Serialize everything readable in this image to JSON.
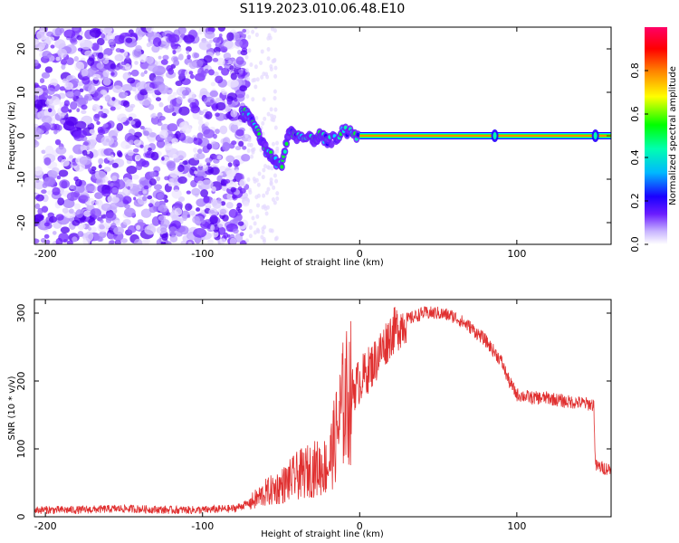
{
  "title": "S119.2023.010.06.48.E10",
  "colors": {
    "snr_line": "#e03030",
    "colormap": [
      "#ffffff",
      "#d8c8ff",
      "#8a3cff",
      "#2200ff",
      "#00e0ff",
      "#00ff30",
      "#ffff00",
      "#ff7a00",
      "#ff0000",
      "#ff0066"
    ]
  },
  "chart_data": [
    {
      "type": "heatmap",
      "title": "S119.2023.010.06.48.E10",
      "xlabel": "Height of straight line (km)",
      "ylabel": "Frequency (Hz)",
      "xlim": [
        -207,
        160
      ],
      "ylim": [
        -25,
        25
      ],
      "xticks": [
        -200,
        -100,
        0,
        100
      ],
      "yticks": [
        20,
        10,
        0,
        -10,
        -20
      ],
      "colorbar": {
        "label": "Normalized spectral amplitude",
        "range": [
          0,
          1
        ],
        "ticks": [
          "0.0",
          "0.2",
          "0.4",
          "0.6",
          "0.8"
        ]
      },
      "features": {
        "noise_region": {
          "x_range": [
            -207,
            -72
          ],
          "freq_range": [
            -25,
            25
          ],
          "amplitude": 0.1
        },
        "signal_track": [
          {
            "x": -75,
            "freq": 6
          },
          {
            "x": -70,
            "freq": 4
          },
          {
            "x": -65,
            "freq": 1
          },
          {
            "x": -60,
            "freq": -3
          },
          {
            "x": -55,
            "freq": -5.5
          },
          {
            "x": -50,
            "freq": -7
          },
          {
            "x": -45,
            "freq": 1
          },
          {
            "x": -40,
            "freq": 0
          },
          {
            "x": -30,
            "freq": -1
          },
          {
            "x": -25,
            "freq": 0
          },
          {
            "x": -20,
            "freq": -1.5
          },
          {
            "x": -10,
            "freq": 1
          },
          {
            "x": 0,
            "freq": 0
          },
          {
            "x": 160,
            "freq": 0
          }
        ],
        "line_x_start": 0
      }
    },
    {
      "type": "line",
      "xlabel": "Height of straight line (km)",
      "ylabel": "SNR (10 * v/v)",
      "xlim": [
        -207,
        160
      ],
      "ylim": [
        0,
        320
      ],
      "xticks": [
        -200,
        -100,
        0,
        100
      ],
      "yticks": [
        0,
        100,
        200,
        300
      ],
      "series": [
        {
          "x": [
            -207,
            -180,
            -150,
            -120,
            -100,
            -80,
            -70,
            -60,
            -50,
            -40,
            -30,
            -20,
            -15,
            -10,
            -5,
            0,
            10,
            20,
            30,
            40,
            50,
            60,
            70,
            80,
            90,
            95,
            100,
            110,
            120,
            130,
            140,
            149,
            150,
            155,
            160
          ],
          "values": [
            10,
            10,
            12,
            10,
            10,
            12,
            20,
            35,
            45,
            60,
            70,
            75,
            120,
            170,
            185,
            200,
            230,
            270,
            290,
            300,
            300,
            295,
            280,
            260,
            230,
            200,
            180,
            175,
            175,
            170,
            168,
            165,
            75,
            72,
            70
          ]
        }
      ]
    }
  ]
}
